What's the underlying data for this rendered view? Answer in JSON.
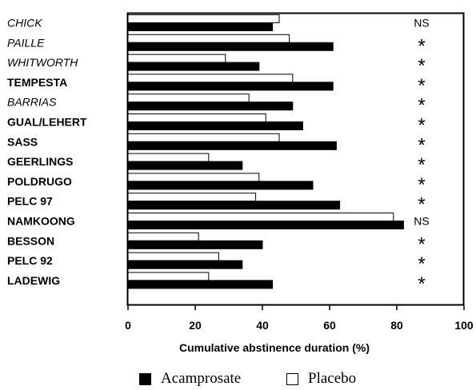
{
  "chart_data": {
    "type": "bar",
    "orientation": "horizontal",
    "title": "",
    "xlabel": "Cumulative abstinence duration (%)",
    "ylabel": "",
    "xlim": [
      0,
      100
    ],
    "xticks": [
      0,
      20,
      40,
      60,
      80,
      100
    ],
    "grid": false,
    "legend_position": "bottom",
    "categories": [
      "CHICK",
      "PAILLE",
      "WHITWORTH",
      "TEMPESTA",
      "BARRIAS",
      "GUAL/LEHERT",
      "SASS",
      "GEERLINGS",
      "POLDRUGO",
      "PELC 97",
      "NAMKOONG",
      "BESSON",
      "PELC 92",
      "LADEWIG"
    ],
    "category_styles": [
      "italic",
      "italic",
      "italic",
      "bold",
      "italic",
      "bold",
      "bold",
      "bold",
      "bold",
      "bold",
      "bold",
      "bold",
      "bold",
      "bold"
    ],
    "series": [
      {
        "name": "Acamprosate",
        "color": "#000000",
        "values": [
          43,
          61,
          39,
          61,
          49,
          52,
          62,
          34,
          55,
          63,
          82,
          40,
          34,
          43
        ]
      },
      {
        "name": "Placebo",
        "color": "#ffffff",
        "values": [
          45,
          48,
          29,
          49,
          36,
          41,
          45,
          24,
          39,
          38,
          79,
          21,
          27,
          24
        ]
      }
    ],
    "significance": [
      "NS",
      "*",
      "*",
      "*",
      "*",
      "*",
      "*",
      "*",
      "*",
      "*",
      "NS",
      "*",
      "*",
      "*"
    ]
  }
}
